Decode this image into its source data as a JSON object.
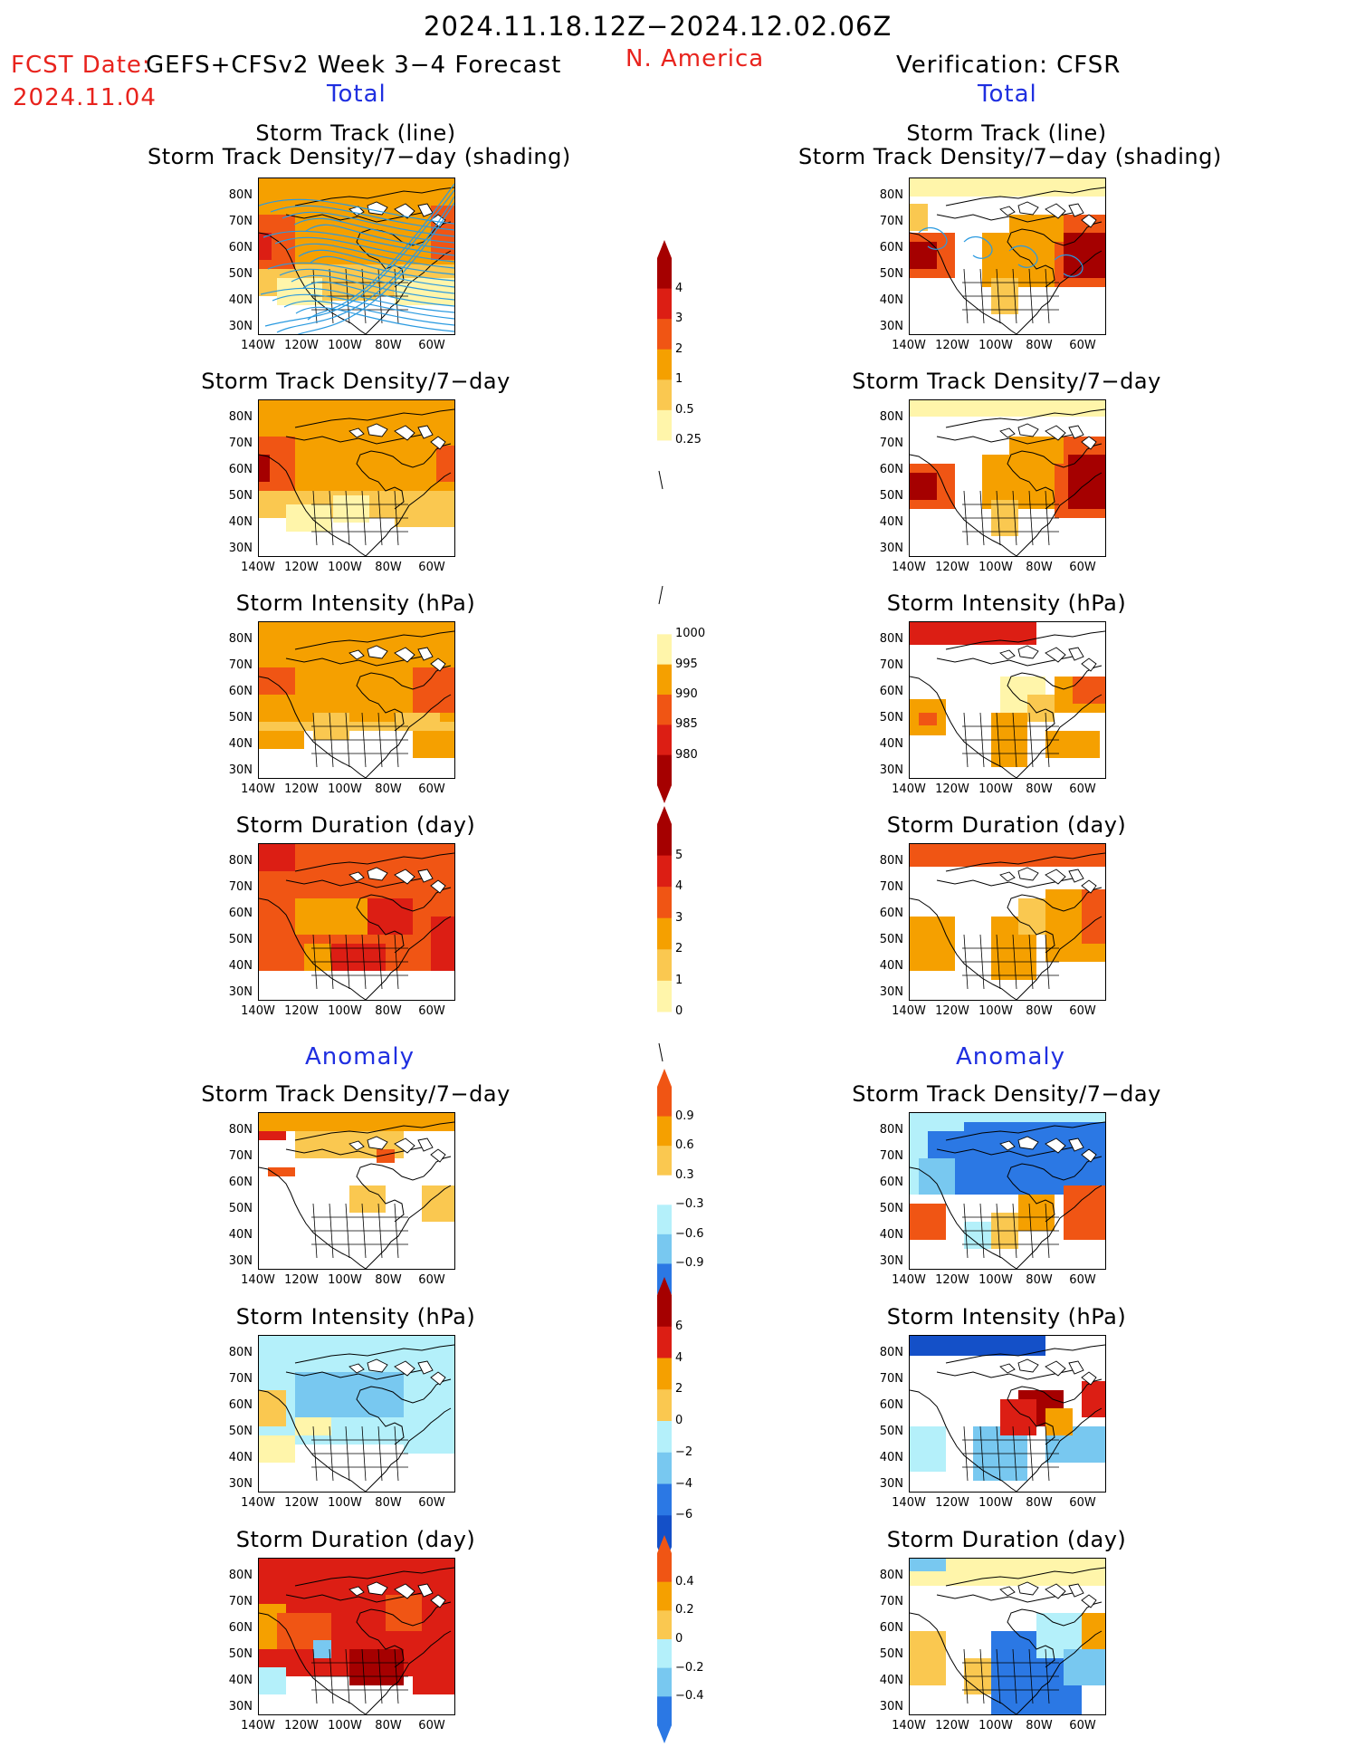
{
  "header": {
    "date_range": "2024.11.18.12Z−2024.12.02.06Z",
    "fcst_label": "FCST Date:",
    "fcst_date": "2024.11.04",
    "forecast_title": "GEFS+CFSv2 Week 3−4 Forecast",
    "region": "N. America",
    "verification": "Verification: CFSR"
  },
  "sections": {
    "total": "Total",
    "anomaly": "Anomaly"
  },
  "panel_titles": {
    "track_line": "Storm Track (line)",
    "track_shading": "Storm Track Density/7−day (shading)",
    "density": "Storm Track Density/7−day",
    "intensity": "Storm Intensity (hPa)",
    "duration": "Storm Duration (day)"
  },
  "axes": {
    "lat_ticks": [
      "80N",
      "70N",
      "60N",
      "50N",
      "40N",
      "30N"
    ],
    "lon_ticks": [
      "140W",
      "120W",
      "100W",
      "80W",
      "60W"
    ]
  },
  "colorbars": {
    "density_total": [
      "4",
      "3",
      "2",
      "1",
      "0.5",
      "0.25"
    ],
    "intensity_total": [
      "1000",
      "995",
      "990",
      "985",
      "980"
    ],
    "duration_total": [
      "5",
      "4",
      "3",
      "2",
      "1",
      "0"
    ],
    "density_anom": [
      "0.9",
      "0.6",
      "0.3",
      "−0.3",
      "−0.6",
      "−0.9"
    ],
    "intensity_anom": [
      "6",
      "4",
      "2",
      "0",
      "−2",
      "−4",
      "−6"
    ],
    "duration_anom": [
      "0.4",
      "0.2",
      "0",
      "−0.2",
      "−0.4"
    ]
  },
  "colors": {
    "dark_red": "#a50000",
    "red": "#dc1e14",
    "orange_red": "#f05514",
    "orange": "#f5a000",
    "light_orange": "#fac850",
    "pale_yellow": "#fff5aa",
    "light_blue": "#b4f0fa",
    "mid_blue": "#78c8f0",
    "blue": "#2b78e4",
    "dark_blue": "#1450c8",
    "track_line": "#2a9ae0"
  }
}
